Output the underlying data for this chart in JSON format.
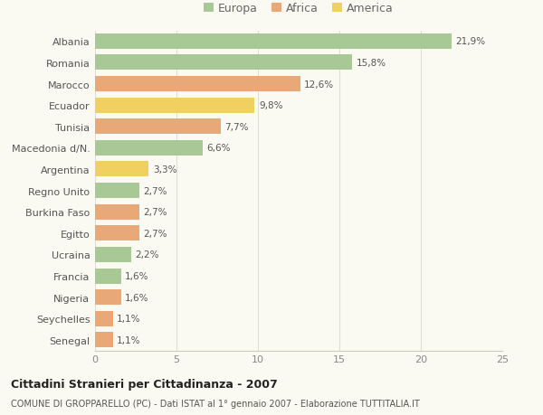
{
  "countries": [
    "Albania",
    "Romania",
    "Marocco",
    "Ecuador",
    "Tunisia",
    "Macedonia d/N.",
    "Argentina",
    "Regno Unito",
    "Burkina Faso",
    "Egitto",
    "Ucraina",
    "Francia",
    "Nigeria",
    "Seychelles",
    "Senegal"
  ],
  "values": [
    21.9,
    15.8,
    12.6,
    9.8,
    7.7,
    6.6,
    3.3,
    2.7,
    2.7,
    2.7,
    2.2,
    1.6,
    1.6,
    1.1,
    1.1
  ],
  "continents": [
    "Europa",
    "Europa",
    "Africa",
    "America",
    "Africa",
    "Europa",
    "America",
    "Europa",
    "Africa",
    "Africa",
    "Europa",
    "Europa",
    "Africa",
    "Africa",
    "Africa"
  ],
  "colors": {
    "Europa": "#a8c896",
    "Africa": "#e8a878",
    "America": "#f0d060"
  },
  "xlim": [
    0,
    25
  ],
  "title": "Cittadini Stranieri per Cittadinanza - 2007",
  "subtitle": "COMUNE DI GROPPARELLO (PC) - Dati ISTAT al 1° gennaio 2007 - Elaborazione TUTTITALIA.IT",
  "bg_color": "#fafaf2",
  "grid_color": "#e0e0d0",
  "legend_labels": [
    "Europa",
    "Africa",
    "America"
  ],
  "legend_colors": [
    "#a8c896",
    "#e8a878",
    "#f0d060"
  ]
}
